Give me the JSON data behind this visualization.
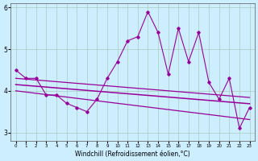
{
  "xlabel": "Windchill (Refroidissement éolien,°C)",
  "x_values": [
    0,
    1,
    2,
    3,
    4,
    5,
    6,
    7,
    8,
    9,
    10,
    11,
    12,
    13,
    14,
    15,
    16,
    17,
    18,
    19,
    20,
    21,
    22,
    23
  ],
  "main_line": [
    4.5,
    4.3,
    4.3,
    3.9,
    3.9,
    3.7,
    3.6,
    3.5,
    3.8,
    4.3,
    4.7,
    5.2,
    5.3,
    5.9,
    5.4,
    4.4,
    5.5,
    4.7,
    5.4,
    4.2,
    3.8,
    4.3,
    3.1,
    3.6
  ],
  "upper_line": [
    4.3,
    4.28,
    4.26,
    4.24,
    4.22,
    4.2,
    4.18,
    4.16,
    4.14,
    4.12,
    4.1,
    4.08,
    4.06,
    4.04,
    4.02,
    4.0,
    3.98,
    3.96,
    3.94,
    3.92,
    3.9,
    3.88,
    3.86,
    3.84
  ],
  "mid_line": [
    4.15,
    4.13,
    4.11,
    4.09,
    4.07,
    4.05,
    4.03,
    4.01,
    3.99,
    3.97,
    3.95,
    3.93,
    3.91,
    3.89,
    3.87,
    3.85,
    3.83,
    3.81,
    3.79,
    3.77,
    3.75,
    3.73,
    3.71,
    3.69
  ],
  "lower_line": [
    4.0,
    3.97,
    3.94,
    3.91,
    3.88,
    3.85,
    3.82,
    3.79,
    3.76,
    3.73,
    3.7,
    3.67,
    3.64,
    3.61,
    3.58,
    3.55,
    3.52,
    3.49,
    3.46,
    3.43,
    3.4,
    3.37,
    3.34,
    3.31
  ],
  "line_color": "#990099",
  "bg_color": "#cceeff",
  "grid_color": "#aaccbb",
  "ylim": [
    2.8,
    6.1
  ],
  "yticks": [
    3,
    4,
    5,
    6
  ]
}
